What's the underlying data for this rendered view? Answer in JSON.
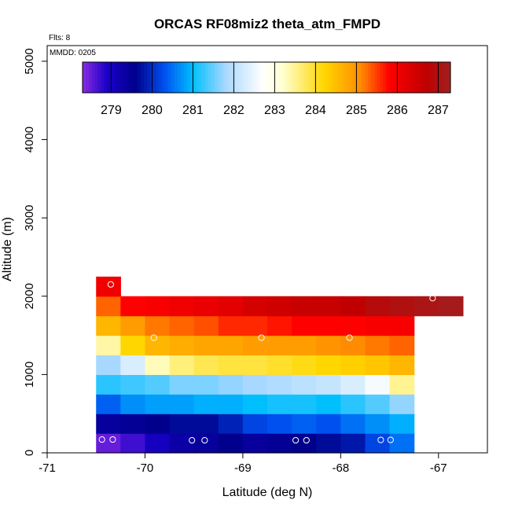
{
  "chart_data": {
    "type": "heatmap",
    "title": "ORCAS RF08miz2 theta_atm_FMPD",
    "annotations": {
      "flights": "Flts: 8",
      "mmdd": "MMDD: 0205"
    },
    "xlabel": "Latitude (deg N)",
    "ylabel": "Altitude (m)",
    "xlim": [
      -71,
      -66.5
    ],
    "ylim": [
      0,
      5200
    ],
    "xticks": [
      -71,
      -70,
      -69,
      -68,
      -67
    ],
    "xtick_labels": [
      "-71",
      "-70",
      "-69",
      "-68",
      "-67"
    ],
    "yticks": [
      0,
      1000,
      2000,
      3000,
      4000,
      5000
    ],
    "ytick_labels": [
      "0",
      "1000",
      "2000",
      "3000",
      "4000",
      "5000"
    ],
    "colorbar": {
      "range": [
        278.3,
        287.3
      ],
      "ticks": [
        279,
        280,
        281,
        282,
        283,
        284,
        285,
        286,
        287
      ],
      "tick_labels": [
        "279",
        "280",
        "281",
        "282",
        "283",
        "284",
        "285",
        "286",
        "287"
      ],
      "stops": [
        {
          "v": 278.3,
          "c": "#8a2be2"
        },
        {
          "v": 278.9,
          "c": "#1a00c8"
        },
        {
          "v": 279.6,
          "c": "#00008c"
        },
        {
          "v": 280.3,
          "c": "#0050f0"
        },
        {
          "v": 281.0,
          "c": "#00bfff"
        },
        {
          "v": 281.8,
          "c": "#a8d8ff"
        },
        {
          "v": 282.7,
          "c": "#ffffff"
        },
        {
          "v": 283.2,
          "c": "#ffffd0"
        },
        {
          "v": 284.2,
          "c": "#ffd700"
        },
        {
          "v": 285.1,
          "c": "#ff8c00"
        },
        {
          "v": 285.8,
          "c": "#ff0000"
        },
        {
          "v": 286.7,
          "c": "#c00000"
        },
        {
          "v": 287.3,
          "c": "#a02020"
        }
      ]
    },
    "grid": {
      "lat_start": -70.5,
      "lat_step": 0.25,
      "alt_step": 250,
      "rows": [
        {
          "alt": 0,
          "lat0": -70.5,
          "values": [
            278.5,
            278.7,
            279.0,
            279.3,
            279.4,
            279.6,
            279.4,
            279.5,
            279.6,
            279.7,
            279.8,
            280.2,
            280.5
          ]
        },
        {
          "alt": 250,
          "lat0": -70.5,
          "values": [
            279.4,
            279.5,
            279.6,
            279.7,
            279.7,
            279.9,
            280.2,
            280.3,
            280.4,
            280.3,
            280.5,
            280.7,
            280.9
          ]
        },
        {
          "alt": 500,
          "lat0": -70.5,
          "values": [
            280.4,
            280.7,
            280.8,
            280.8,
            280.9,
            280.9,
            281.0,
            281.1,
            281.1,
            281.0,
            281.2,
            281.4,
            281.7
          ]
        },
        {
          "alt": 750,
          "lat0": -70.5,
          "values": [
            281.2,
            281.3,
            281.4,
            281.6,
            281.6,
            281.7,
            281.8,
            281.9,
            282.0,
            282.1,
            282.3,
            282.6,
            283.5
          ]
        },
        {
          "alt": 1000,
          "lat0": -70.5,
          "values": [
            281.8,
            282.3,
            283.3,
            283.6,
            283.8,
            283.9,
            283.9,
            284.0,
            284.1,
            284.2,
            284.3,
            284.4,
            284.6
          ]
        },
        {
          "alt": 1250,
          "lat0": -70.5,
          "values": [
            283.4,
            284.2,
            284.6,
            284.7,
            284.8,
            284.8,
            284.9,
            284.9,
            284.9,
            285.0,
            285.1,
            285.2,
            285.3
          ]
        },
        {
          "alt": 1500,
          "lat0": -70.5,
          "values": [
            284.6,
            284.9,
            285.2,
            285.3,
            285.4,
            285.6,
            285.6,
            285.7,
            285.8,
            285.8,
            285.8,
            285.9,
            285.9
          ]
        },
        {
          "alt": 1750,
          "lat0": -70.5,
          "values": [
            285.3,
            285.8,
            285.9,
            286.0,
            286.1,
            286.2,
            286.4,
            286.5,
            286.6,
            286.6,
            286.7,
            286.9,
            287.0,
            287.1,
            287.2
          ]
        },
        {
          "alt": 2000,
          "lat0": -70.5,
          "values": [
            286.0
          ]
        }
      ]
    },
    "markers": [
      {
        "lat": -70.44,
        "alt": 170
      },
      {
        "lat": -70.33,
        "alt": 170
      },
      {
        "lat": -69.52,
        "alt": 160
      },
      {
        "lat": -69.39,
        "alt": 160
      },
      {
        "lat": -68.46,
        "alt": 160
      },
      {
        "lat": -68.35,
        "alt": 160
      },
      {
        "lat": -67.59,
        "alt": 165
      },
      {
        "lat": -67.49,
        "alt": 165
      },
      {
        "lat": -70.35,
        "alt": 2150
      },
      {
        "lat": -69.91,
        "alt": 1470
      },
      {
        "lat": -68.81,
        "alt": 1470
      },
      {
        "lat": -67.91,
        "alt": 1470
      },
      {
        "lat": -67.06,
        "alt": 1975
      }
    ]
  }
}
